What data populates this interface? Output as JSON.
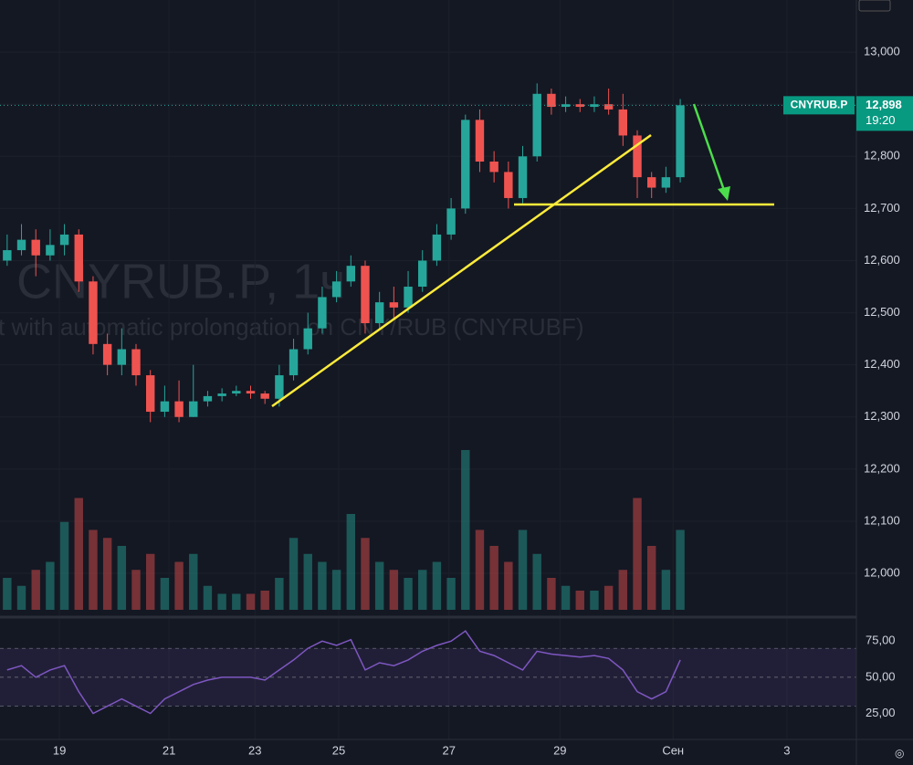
{
  "chart_data": [
    {
      "type": "candlestick",
      "title": "CNYRUB.P, 1ч",
      "subtitle": "t with automatic prolongation on CNY/RUB (CNYRUBF)",
      "symbol": "CNYRUB.P",
      "last": {
        "value": 12898,
        "label": "12,898"
      },
      "countdown": "19:20",
      "open": [
        12600,
        12620,
        12640,
        12610,
        12630,
        12650,
        12560,
        12440,
        12400,
        12430,
        12380,
        12310,
        12330,
        12300,
        12330,
        12340,
        12345,
        12350,
        12345,
        12335,
        12380,
        12430,
        12470,
        12530,
        12560,
        12590,
        12480,
        12520,
        12510,
        12550,
        12600,
        12650,
        12700,
        12870,
        12790,
        12770,
        12720,
        12800,
        12920,
        12895,
        12900,
        12895,
        12900,
        12890,
        12840,
        12760,
        12740,
        12760
      ],
      "high": [
        12650,
        12670,
        12660,
        12660,
        12670,
        12660,
        12570,
        12460,
        12470,
        12440,
        12390,
        12360,
        12370,
        12400,
        12350,
        12355,
        12360,
        12360,
        12350,
        12400,
        12450,
        12500,
        12550,
        12580,
        12610,
        12600,
        12540,
        12550,
        12580,
        12620,
        12670,
        12720,
        12880,
        12890,
        12810,
        12790,
        12820,
        12940,
        12930,
        12915,
        12910,
        12915,
        12930,
        12920,
        12850,
        12770,
        12780,
        12910
      ],
      "low": [
        12590,
        12610,
        12570,
        12600,
        12610,
        12540,
        12420,
        12380,
        12380,
        12360,
        12290,
        12300,
        12290,
        12300,
        12320,
        12330,
        12340,
        12335,
        12325,
        12320,
        12370,
        12420,
        12460,
        12520,
        12550,
        12460,
        12470,
        12490,
        12500,
        12540,
        12590,
        12640,
        12690,
        12770,
        12750,
        12700,
        12710,
        12790,
        12880,
        12885,
        12885,
        12885,
        12880,
        12820,
        12720,
        12720,
        12730,
        12750
      ],
      "close": [
        12620,
        12640,
        12610,
        12630,
        12650,
        12560,
        12440,
        12400,
        12430,
        12380,
        12310,
        12330,
        12300,
        12330,
        12340,
        12345,
        12350,
        12345,
        12335,
        12380,
        12430,
        12470,
        12530,
        12560,
        12590,
        12480,
        12520,
        12510,
        12550,
        12600,
        12650,
        12700,
        12870,
        12790,
        12770,
        12720,
        12800,
        12920,
        12895,
        12900,
        12895,
        12900,
        12890,
        12840,
        12760,
        12740,
        12760,
        12898
      ],
      "volume": [
        20,
        15,
        25,
        30,
        55,
        70,
        50,
        45,
        40,
        25,
        35,
        20,
        30,
        35,
        15,
        10,
        10,
        10,
        12,
        20,
        45,
        35,
        30,
        25,
        60,
        45,
        30,
        25,
        20,
        25,
        30,
        20,
        100,
        50,
        40,
        30,
        50,
        35,
        20,
        15,
        12,
        12,
        15,
        25,
        70,
        40,
        25,
        50
      ],
      "volume_ylim": [
        0,
        100
      ],
      "up_color": "#26a69a",
      "down_color": "#ef5350",
      "xlim": [
        -0.5,
        59.3
      ],
      "ylim": [
        11930,
        13100
      ],
      "yticks": [
        {
          "value": 12000,
          "label": "12,000"
        },
        {
          "value": 12100,
          "label": "12,100"
        },
        {
          "value": 12200,
          "label": "12,200"
        },
        {
          "value": 12300,
          "label": "12,300"
        },
        {
          "value": 12400,
          "label": "12,400"
        },
        {
          "value": 12500,
          "label": "12,500"
        },
        {
          "value": 12600,
          "label": "12,600"
        },
        {
          "value": 12700,
          "label": "12,700"
        },
        {
          "value": 12800,
          "label": "12,800"
        },
        {
          "value": 12900,
          "label": "12,900"
        },
        {
          "value": 13000,
          "label": "13,000"
        }
      ],
      "grid": true
    },
    {
      "type": "line",
      "values": [
        55,
        58,
        50,
        55,
        58,
        40,
        25,
        30,
        35,
        30,
        25,
        35,
        40,
        45,
        48,
        50,
        50,
        50,
        48,
        55,
        62,
        70,
        75,
        72,
        76,
        55,
        60,
        58,
        62,
        68,
        72,
        75,
        82,
        68,
        65,
        60,
        55,
        68,
        66,
        65,
        64,
        65,
        63,
        55,
        40,
        35,
        40,
        62
      ],
      "color": "#7e57c2",
      "bands": [
        30,
        50,
        70
      ],
      "xlim": [
        -0.5,
        59.3
      ],
      "ylim": [
        7,
        84
      ],
      "yticks": [
        {
          "value": 25,
          "label": "25,00"
        },
        {
          "value": 50,
          "label": "50,00"
        },
        {
          "value": 75,
          "label": "75,00"
        }
      ],
      "xticks": [
        {
          "value": 3.65,
          "label": "19"
        },
        {
          "value": 11.3,
          "label": "21"
        },
        {
          "value": 17.3,
          "label": "23"
        },
        {
          "value": 23.15,
          "label": "25"
        },
        {
          "value": 30.85,
          "label": "27"
        },
        {
          "value": 38.6,
          "label": "29"
        },
        {
          "value": 46.5,
          "label": "Сен"
        },
        {
          "value": 54.45,
          "label": "3"
        }
      ],
      "grid": true
    }
  ]
}
